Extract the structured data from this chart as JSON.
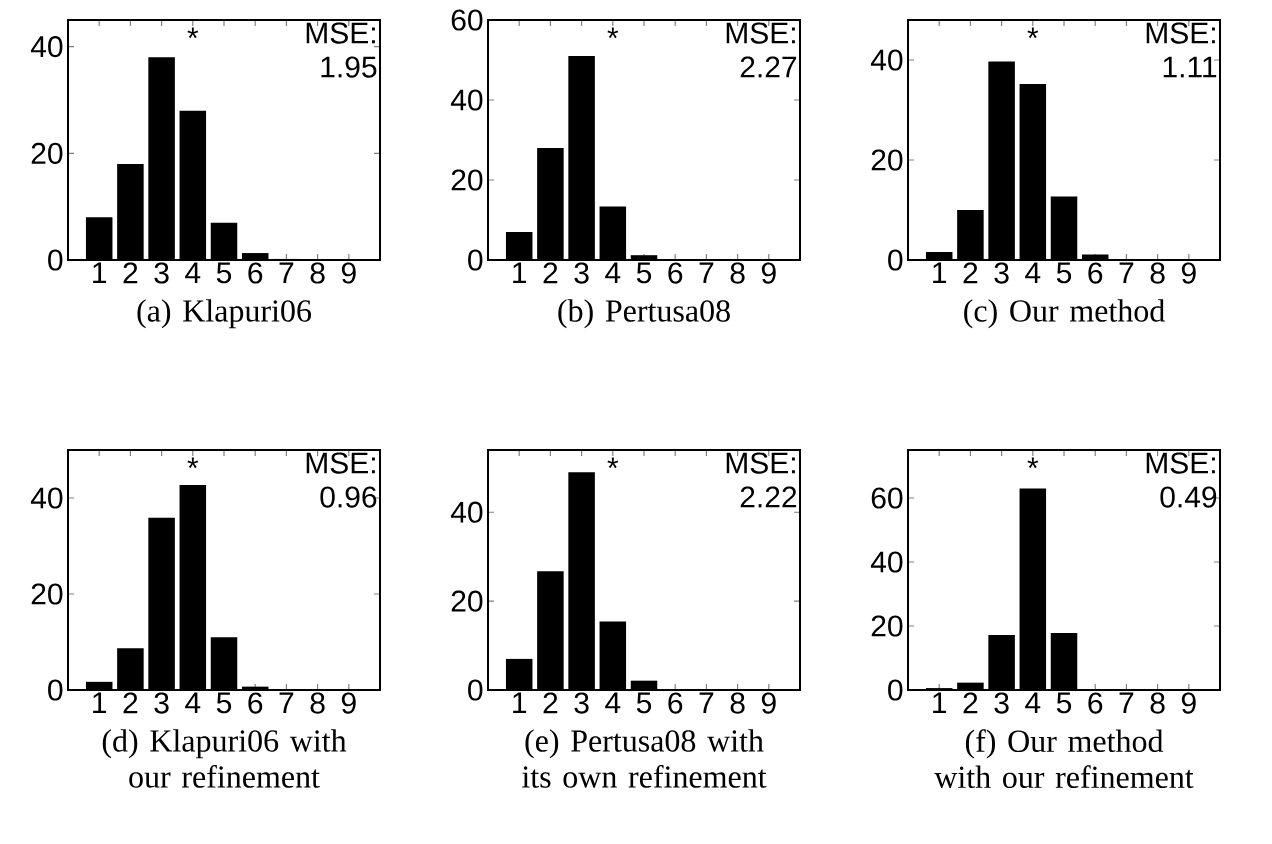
{
  "chart_data": [
    {
      "type": "bar",
      "title": "(a) Klapuri06",
      "categories": [
        "1",
        "2",
        "3",
        "4",
        "5",
        "6",
        "7",
        "8",
        "9"
      ],
      "values": [
        8,
        18,
        38,
        28,
        7,
        1.3,
        0.2,
        0,
        0
      ],
      "color": "#000000",
      "ylim": [
        0,
        45
      ],
      "yticks": [
        0,
        20,
        40
      ],
      "annotations": [
        "MSE: 1.95",
        "*"
      ]
    },
    {
      "type": "bar",
      "title": "(b) Pertusa08",
      "categories": [
        "1",
        "2",
        "3",
        "4",
        "5",
        "6",
        "7",
        "8",
        "9"
      ],
      "values": [
        7,
        28,
        51,
        13.4,
        1.2,
        0,
        0,
        0,
        0
      ],
      "color": "#000000",
      "ylim": [
        0,
        60
      ],
      "yticks": [
        0,
        20,
        40,
        60
      ],
      "annotations": [
        "MSE: 2.27",
        "*"
      ]
    },
    {
      "type": "bar",
      "title": "(c) Our method",
      "categories": [
        "1",
        "2",
        "3",
        "4",
        "5",
        "6",
        "7",
        "8",
        "9"
      ],
      "values": [
        1.6,
        10,
        39.7,
        35.2,
        12.7,
        1.1,
        0,
        0,
        0
      ],
      "color": "#000000",
      "ylim": [
        0,
        48
      ],
      "yticks": [
        0,
        20,
        40
      ],
      "annotations": [
        "MSE: 1.11",
        "*"
      ]
    },
    {
      "type": "bar",
      "title": "(d) Klapuri06 with our refinement",
      "categories": [
        "1",
        "2",
        "3",
        "4",
        "5",
        "6",
        "7",
        "8",
        "9"
      ],
      "values": [
        1.7,
        8.7,
        35.9,
        42.7,
        11,
        0.7,
        0.2,
        0,
        0
      ],
      "color": "#000000",
      "ylim": [
        0,
        50
      ],
      "yticks": [
        0,
        20,
        40
      ],
      "annotations": [
        "MSE: 0.96",
        "*"
      ]
    },
    {
      "type": "bar",
      "title": "(e) Pertusa08 with its own refinement",
      "categories": [
        "1",
        "2",
        "3",
        "4",
        "5",
        "6",
        "7",
        "8",
        "9"
      ],
      "values": [
        7,
        26.7,
        49,
        15.4,
        2.1,
        0,
        0,
        0,
        0
      ],
      "color": "#000000",
      "ylim": [
        0,
        54
      ],
      "yticks": [
        0,
        20,
        40
      ],
      "annotations": [
        "MSE: 2.22",
        "*"
      ]
    },
    {
      "type": "bar",
      "title": "(f) Our method with our refinement",
      "categories": [
        "1",
        "2",
        "3",
        "4",
        "5",
        "6",
        "7",
        "8",
        "9"
      ],
      "values": [
        0.6,
        2.3,
        17.2,
        63,
        17.8,
        0,
        0,
        0,
        0
      ],
      "color": "#000000",
      "ylim": [
        0,
        75
      ],
      "yticks": [
        0,
        20,
        40,
        60
      ],
      "annotations": [
        "MSE: 0.49",
        "*"
      ]
    }
  ]
}
